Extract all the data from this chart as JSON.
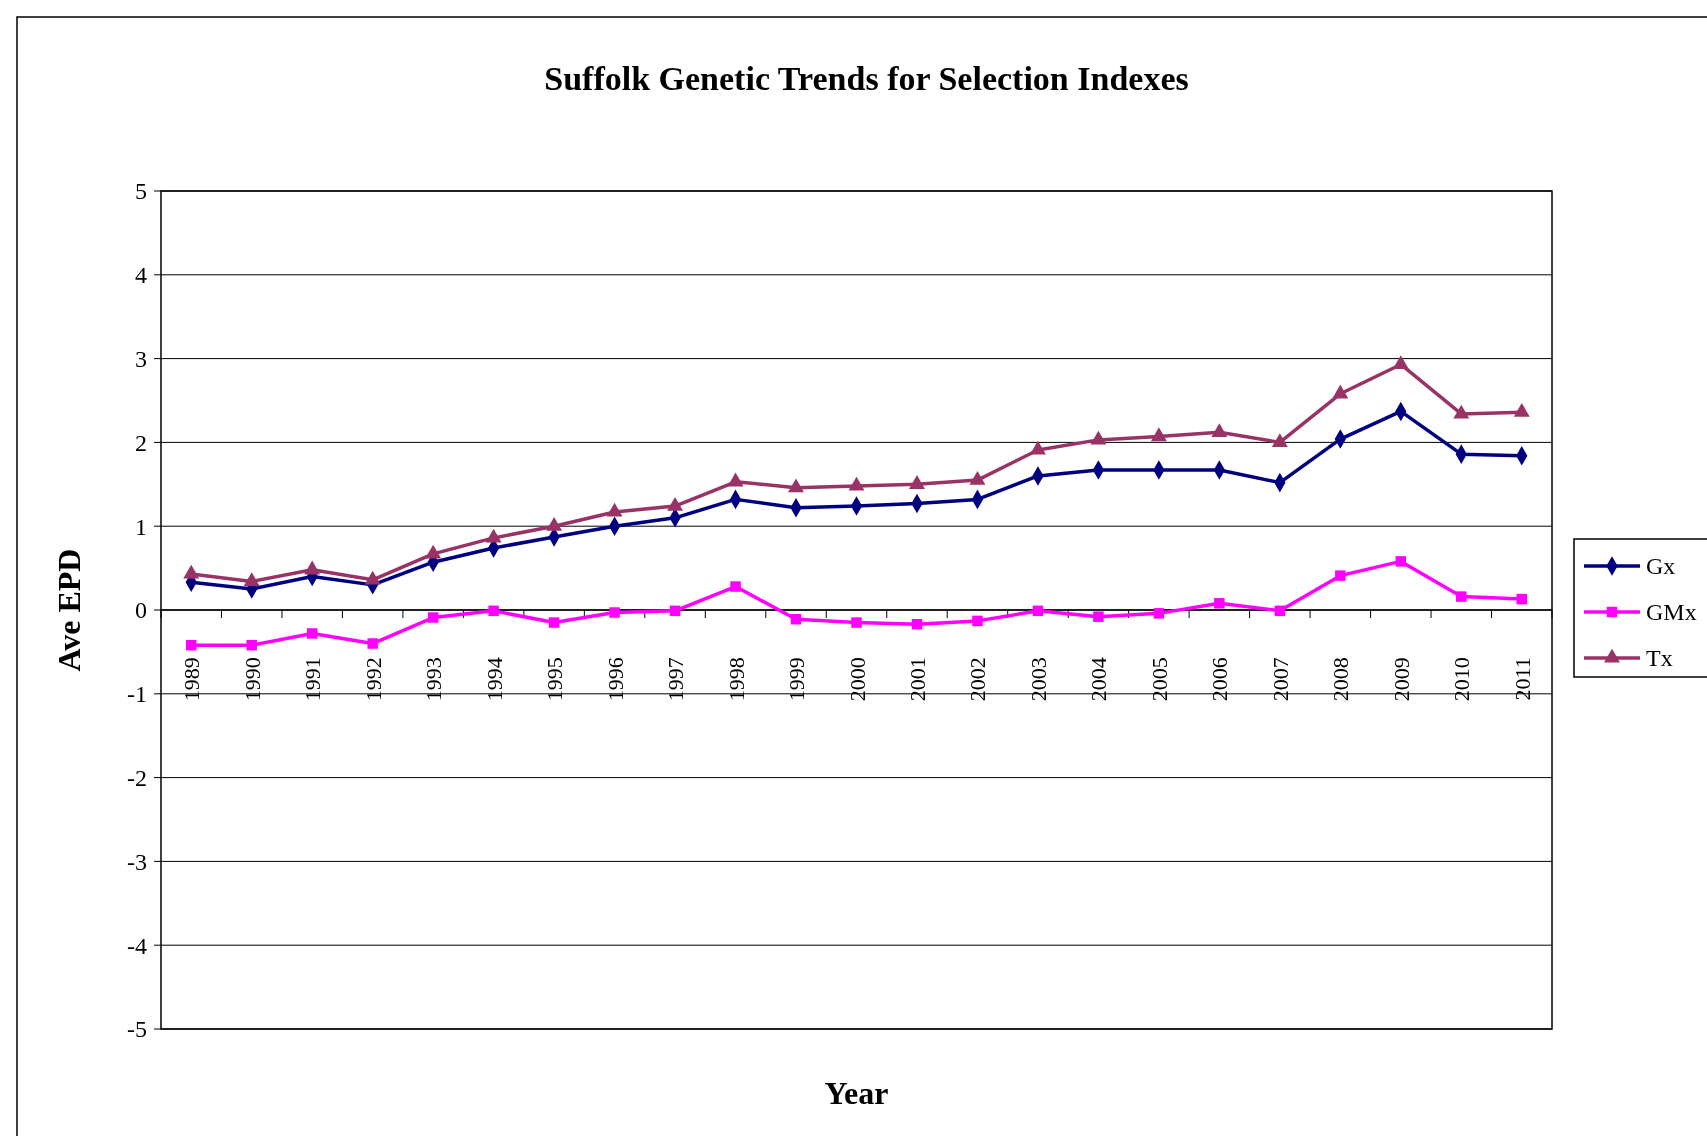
{
  "chart_data": {
    "type": "line",
    "title": "Suffolk Genetic Trends for Selection Indexes",
    "xlabel": "Year",
    "ylabel": "Ave EPD",
    "categories": [
      "1989",
      "1990",
      "1991",
      "1992",
      "1993",
      "1994",
      "1995",
      "1996",
      "1997",
      "1998",
      "1999",
      "2000",
      "2001",
      "2002",
      "2003",
      "2004",
      "2005",
      "2006",
      "2007",
      "2008",
      "2009",
      "2010",
      "2011"
    ],
    "series": [
      {
        "name": "Gx",
        "color": "#000080",
        "marker": "diamond",
        "values": [
          0.33,
          0.25,
          0.4,
          0.3,
          0.57,
          0.74,
          0.87,
          1.0,
          1.1,
          1.32,
          1.22,
          1.24,
          1.27,
          1.32,
          1.6,
          1.67,
          1.67,
          1.67,
          1.52,
          2.04,
          2.37,
          1.86,
          1.84
        ]
      },
      {
        "name": "GMx",
        "color": "#ff00ff",
        "marker": "square",
        "values": [
          -0.42,
          -0.42,
          -0.28,
          -0.4,
          -0.09,
          -0.01,
          -0.15,
          -0.03,
          -0.01,
          0.28,
          -0.11,
          -0.15,
          -0.17,
          -0.13,
          -0.01,
          -0.08,
          -0.04,
          0.08,
          -0.01,
          0.41,
          0.58,
          0.16,
          0.13
        ]
      },
      {
        "name": "Tx",
        "color": "#993366",
        "marker": "triangle",
        "values": [
          0.43,
          0.34,
          0.48,
          0.36,
          0.67,
          0.86,
          1.0,
          1.17,
          1.24,
          1.53,
          1.46,
          1.48,
          1.5,
          1.55,
          1.91,
          2.03,
          2.07,
          2.12,
          2.0,
          2.58,
          2.93,
          2.34,
          2.36
        ]
      }
    ],
    "ylim": [
      -5,
      5
    ],
    "yticks": [
      -5,
      -4,
      -3,
      -2,
      -1,
      0,
      1,
      2,
      3,
      4,
      5
    ],
    "grid": "y",
    "legend": "right",
    "line_style": "solid"
  }
}
